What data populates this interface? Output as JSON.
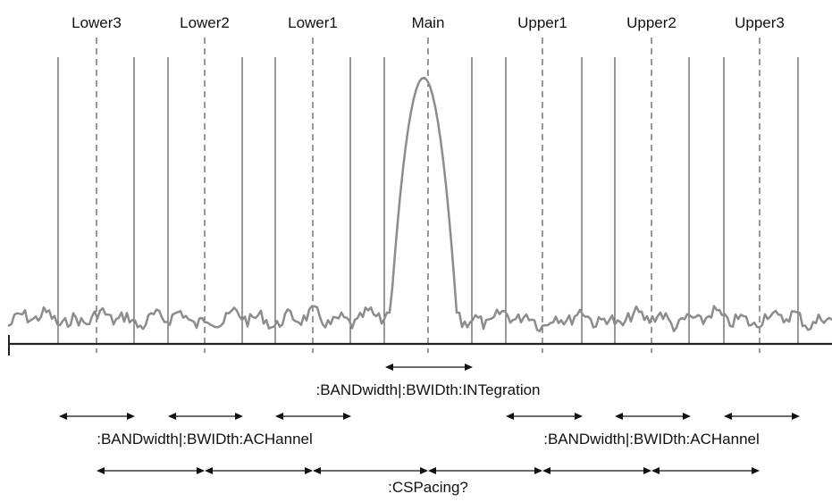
{
  "channels": [
    "Lower3",
    "Lower2",
    "Lower1",
    "Main",
    "Upper1",
    "Upper2",
    "Upper3"
  ],
  "labels": {
    "integration": ":BANDwidth|:BWIDth:INTegration",
    "achannel_left": ":BANDwidth|:BWIDth:ACHannel",
    "achannel_right": ":BANDwidth|:BWIDth:ACHannel",
    "cspacing": ":CSPacing?"
  },
  "colors": {
    "trace": "#8c8c8c",
    "lines": "#222222",
    "text": "#111111"
  }
}
